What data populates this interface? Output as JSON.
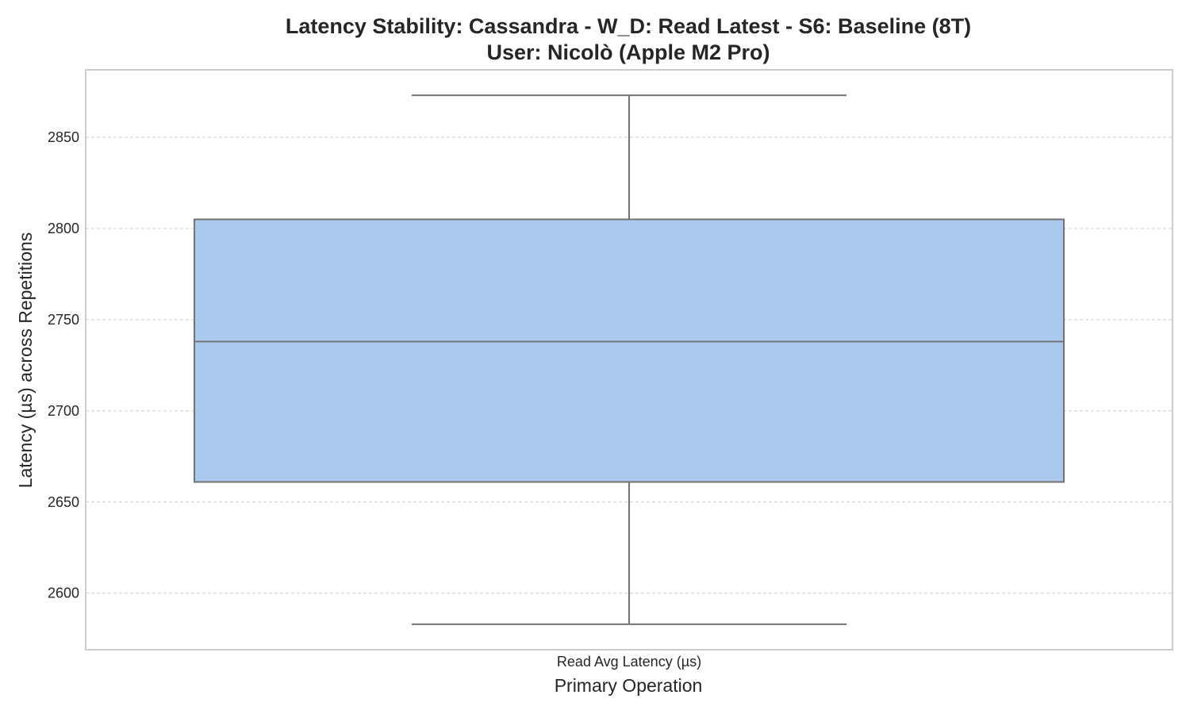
{
  "chart_data": {
    "type": "box",
    "title_line1": "Latency Stability: Cassandra - W_D: Read Latest - S6: Baseline (8T)",
    "title_line2": "User: Nicolò (Apple M2 Pro)",
    "xlabel": "Primary Operation",
    "ylabel": "Latency (µs) across Repetitions",
    "categories": [
      "Read Avg Latency (µs)"
    ],
    "boxes": [
      {
        "category": "Read Avg Latency (µs)",
        "whisker_low": 2583,
        "q1": 2661,
        "median": 2738,
        "q3": 2805,
        "whisker_high": 2873
      }
    ],
    "yticks": [
      2600,
      2650,
      2700,
      2750,
      2800,
      2850
    ],
    "ylim": [
      2569,
      2887
    ],
    "grid": true,
    "box_color": "#abc9ec",
    "line_color": "#737373",
    "grid_color": "#cccccc",
    "frame_color": "#cccccc"
  }
}
